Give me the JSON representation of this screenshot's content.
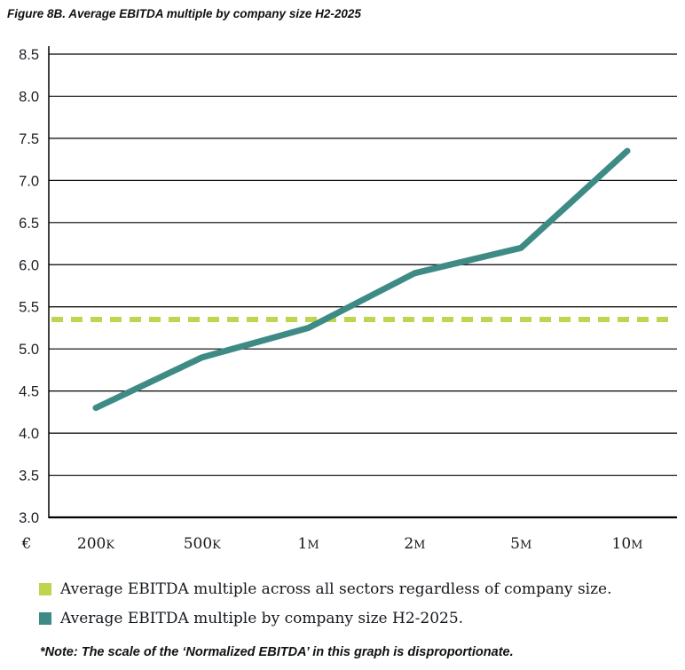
{
  "title": "Figure 8B. Average EBITDA multiple by company size H2-2025",
  "footnote": "*Note: The scale of the ‘Normalized EBITDA’ in this graph is disproportionate.",
  "colors": {
    "series_line": "#3E8B86",
    "average_dashed": "#BFD44F",
    "grid": "#000000",
    "text": "#1A1A1A"
  },
  "chart_data": {
    "type": "line",
    "title": "Figure 8B. Average EBITDA multiple by company size H2-2025",
    "x_prefix_label": "€",
    "categories": [
      "200K",
      "500K",
      "1M",
      "2M",
      "5M",
      "10M"
    ],
    "series": [
      {
        "name": "Average EBITDA multiple by company size H2-2025.",
        "color": "#3E8B86",
        "style": "solid",
        "values": [
          4.3,
          4.9,
          5.25,
          5.9,
          6.2,
          7.35
        ]
      },
      {
        "name": "Average EBITDA multiple across all sectors regardless of company size.",
        "color": "#BFD44F",
        "style": "dashed-horizontal",
        "value": 5.35
      }
    ],
    "ylim": [
      3.0,
      8.5
    ],
    "ytick_step": 0.5,
    "grid": "horizontal",
    "legend_position": "bottom",
    "xlabel": "",
    "ylabel": ""
  },
  "legend": [
    {
      "label": "Average EBITDA multiple across all sectors regardless of company size.",
      "color": "#BFD44F"
    },
    {
      "label": "Average EBITDA multiple by company size H2-2025.",
      "color": "#3E8B86"
    }
  ]
}
